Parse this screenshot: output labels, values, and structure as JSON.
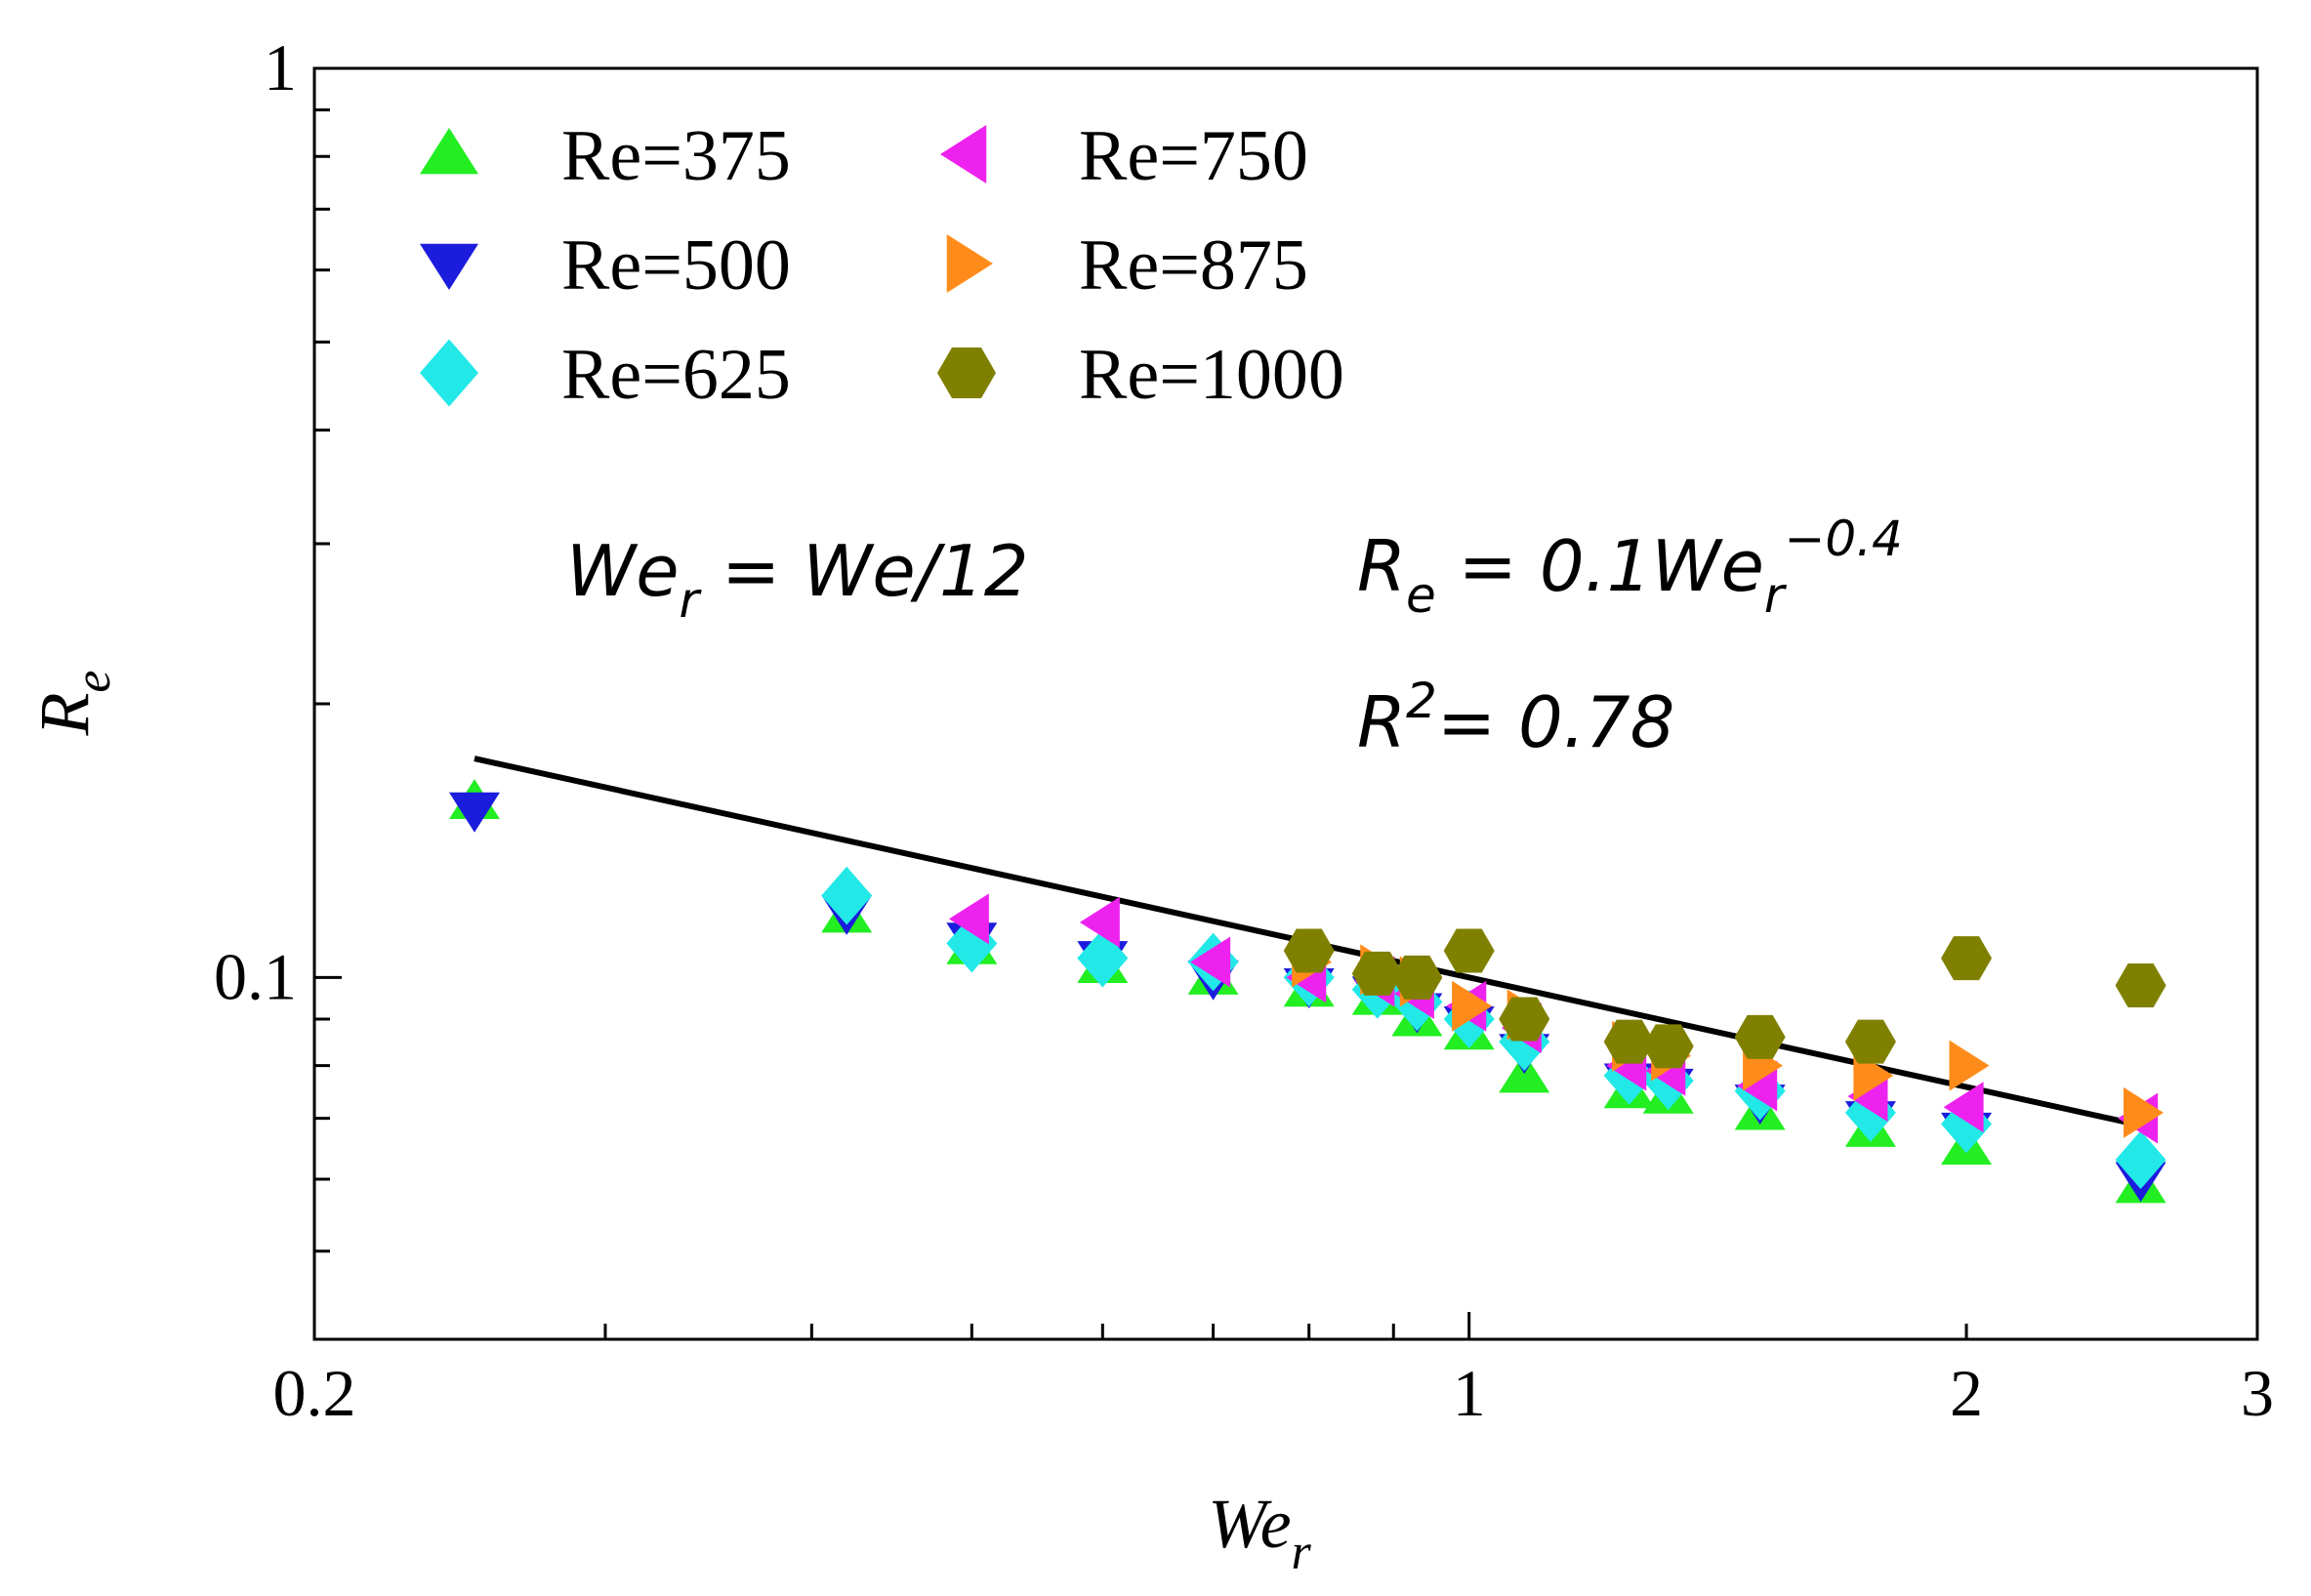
{
  "chart_data": {
    "type": "scatter",
    "x_scale": "log",
    "y_scale": "log",
    "xlim": [
      0.2,
      3
    ],
    "ylim": [
      0.04,
      1
    ],
    "xlabel": {
      "main": "We",
      "sub": "r"
    },
    "ylabel": {
      "main": "R",
      "sub": "e"
    },
    "x_tick_labels": [
      {
        "value": 0.2,
        "label": "0.2"
      },
      {
        "value": 1,
        "label": "1"
      },
      {
        "value": 2,
        "label": "2"
      },
      {
        "value": 3,
        "label": "3"
      }
    ],
    "y_tick_labels": [
      {
        "value": 0.1,
        "label": "0.1"
      },
      {
        "value": 1,
        "label": "1"
      }
    ],
    "annotations": {
      "definition": {
        "lhs": "We",
        "lhs_sub": "r",
        "rhs": " = We/12"
      },
      "fit_equation": {
        "lhs": "R",
        "lhs_sub": "e",
        "mid": " = 0.1We",
        "mid_sub": "r",
        "exp": "−0.4"
      },
      "r_squared": {
        "lhs": "R",
        "sup": "2",
        "rhs": "= 0.78"
      }
    },
    "fit_line": {
      "coefficient": 0.1,
      "exponent": -0.4,
      "x_range": [
        0.25,
        2.55
      ],
      "color": "#000000"
    },
    "series": [
      {
        "name": "Re=375",
        "marker": "triangle-up",
        "color": "#22ee22",
        "x": [
          0.25,
          0.42,
          0.5,
          0.6,
          0.7,
          0.8,
          0.88,
          0.93,
          1.0,
          1.08,
          1.25,
          1.32,
          1.5,
          1.75,
          2.0,
          2.55
        ],
        "y": [
          0.156,
          0.117,
          0.108,
          0.103,
          0.1,
          0.097,
          0.095,
          0.09,
          0.087,
          0.078,
          0.075,
          0.074,
          0.071,
          0.068,
          0.065,
          0.059
        ]
      },
      {
        "name": "Re=500",
        "marker": "triangle-down",
        "color": "#1c1cdd",
        "x": [
          0.25,
          0.42,
          0.5,
          0.6,
          0.7,
          0.8,
          0.88,
          0.93,
          1.0,
          1.08,
          1.25,
          1.32,
          1.5,
          1.75,
          2.0,
          2.55
        ],
        "y": [
          0.153,
          0.118,
          0.11,
          0.105,
          0.1,
          0.098,
          0.096,
          0.092,
          0.089,
          0.083,
          0.077,
          0.076,
          0.073,
          0.07,
          0.068,
          0.06
        ]
      },
      {
        "name": "Re=625",
        "marker": "diamond",
        "color": "#22e8e8",
        "x": [
          0.42,
          0.5,
          0.6,
          0.7,
          0.8,
          0.88,
          0.93,
          1.0,
          1.08,
          1.25,
          1.32,
          1.5,
          1.75,
          2.0,
          2.55
        ],
        "y": [
          0.123,
          0.109,
          0.105,
          0.104,
          0.1,
          0.097,
          0.094,
          0.09,
          0.085,
          0.078,
          0.077,
          0.075,
          0.071,
          0.069,
          0.063
        ]
      },
      {
        "name": "Re=750",
        "marker": "triangle-left",
        "color": "#ee22ee",
        "x": [
          0.5,
          0.6,
          0.7,
          0.8,
          0.88,
          0.93,
          1.0,
          1.08,
          1.25,
          1.32,
          1.5,
          1.75,
          2.0,
          2.55
        ],
        "y": [
          0.116,
          0.115,
          0.104,
          0.1,
          0.099,
          0.096,
          0.093,
          0.088,
          0.08,
          0.079,
          0.076,
          0.074,
          0.072,
          0.07
        ]
      },
      {
        "name": "Re=875",
        "marker": "triangle-right",
        "color": "#ff8c1a",
        "x": [
          0.8,
          0.88,
          0.93,
          1.0,
          1.08,
          1.25,
          1.32,
          1.5,
          1.75,
          2.0,
          2.55
        ],
        "y": [
          0.104,
          0.102,
          0.099,
          0.093,
          0.091,
          0.084,
          0.082,
          0.08,
          0.078,
          0.08,
          0.071
        ]
      },
      {
        "name": "Re=1000",
        "marker": "hexagon",
        "color": "#808000",
        "x": [
          0.8,
          0.88,
          0.93,
          1.0,
          1.08,
          1.25,
          1.32,
          1.5,
          1.75,
          2.0,
          2.55
        ],
        "y": [
          0.107,
          0.101,
          0.1,
          0.107,
          0.09,
          0.085,
          0.084,
          0.086,
          0.085,
          0.105,
          0.098
        ]
      }
    ]
  }
}
